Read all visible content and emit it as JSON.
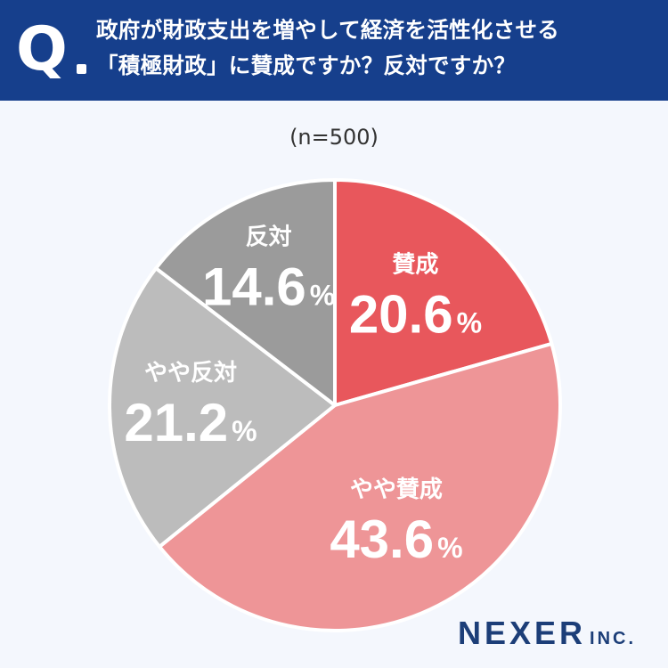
{
  "header": {
    "q_mark": "Q",
    "question_line1": "政府が財政支出を増やして経済を活性化させる",
    "question_line2": "「積極財政」に賛成ですか？反対ですか？"
  },
  "sample_size": "(n=500)",
  "brand": {
    "name": "NEXER",
    "suffix": "INC."
  },
  "colors": {
    "header_bg": "#163f8c",
    "agree": "#e8575c",
    "somewhat_agree": "#ee9597",
    "somewhat_disagree": "#bcbcbc",
    "disagree": "#9b9b9b"
  },
  "chart_data": {
    "type": "pie",
    "start": "12 o'clock, clockwise",
    "slices": [
      {
        "label": "賛成",
        "value": 20.6,
        "display": "20.6",
        "unit": "%",
        "color": "#e8575c"
      },
      {
        "label": "やや賛成",
        "value": 43.6,
        "display": "43.6",
        "unit": "%",
        "color": "#ee9597"
      },
      {
        "label": "やや反対",
        "value": 21.2,
        "display": "21.2",
        "unit": "%",
        "color": "#bcbcbc"
      },
      {
        "label": "反対",
        "value": 14.6,
        "display": "14.6",
        "unit": "%",
        "color": "#9b9b9b"
      }
    ]
  }
}
